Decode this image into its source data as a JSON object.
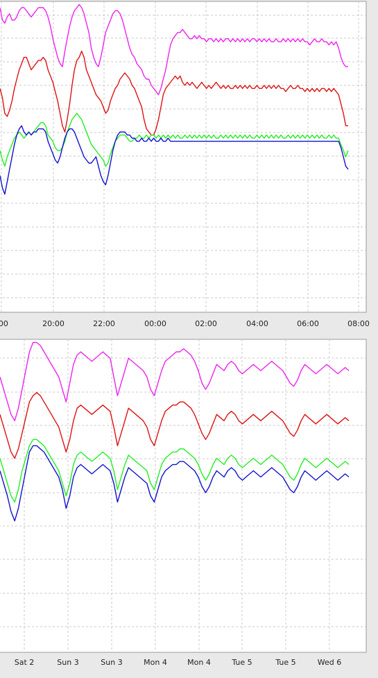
{
  "colors": {
    "background": "#e9e9e9",
    "plot_area": "#ffffff",
    "grid": "#c8c8c8",
    "magenta": "#ee22ee",
    "red": "#dd1111",
    "green": "#22ee22",
    "blue": "#1111cc"
  },
  "chart_data": [
    {
      "type": "line",
      "x_tick_labels": [
        ":00",
        "20:00",
        "22:00",
        "00:00",
        "02:00",
        "04:00",
        "06:00",
        "08:00"
      ],
      "grid": true,
      "series": [
        {
          "color": "magenta",
          "values": [
            98,
            94,
            93,
            95,
            96,
            94,
            94,
            95,
            97,
            98,
            98,
            97,
            96,
            95,
            96,
            97,
            98,
            98,
            98,
            97,
            95,
            92,
            88,
            85,
            82,
            80,
            79,
            84,
            88,
            92,
            95,
            97,
            98,
            99,
            98,
            96,
            93,
            90,
            85,
            82,
            80,
            79,
            82,
            86,
            90,
            92,
            94,
            96,
            97,
            97,
            96,
            94,
            91,
            88,
            85,
            83,
            82,
            80,
            79,
            78,
            76,
            75,
            75,
            73,
            72,
            71,
            70,
            72,
            75,
            78,
            82,
            86,
            88,
            89,
            90,
            90,
            91,
            90,
            89,
            88,
            88,
            89,
            88,
            89,
            88,
            88,
            87,
            88,
            88,
            87,
            88,
            87,
            88,
            87,
            88,
            88,
            87,
            88,
            87,
            88,
            87,
            88,
            87,
            88,
            87,
            88,
            88,
            87,
            88,
            87,
            88,
            87,
            88,
            87,
            87,
            88,
            87,
            87,
            88,
            87,
            88,
            87,
            88,
            87,
            88,
            87,
            88,
            87,
            87,
            86,
            87,
            88,
            87,
            87,
            88,
            87,
            87,
            86,
            87,
            86,
            87,
            85,
            82,
            80,
            79,
            79
          ]
        },
        {
          "color": "red",
          "values": [
            72,
            69,
            64,
            63,
            65,
            68,
            72,
            75,
            78,
            80,
            82,
            82,
            80,
            78,
            79,
            80,
            81,
            81,
            82,
            81,
            78,
            76,
            74,
            71,
            68,
            64,
            60,
            58,
            62,
            67,
            73,
            78,
            81,
            82,
            84,
            82,
            78,
            76,
            74,
            72,
            70,
            69,
            68,
            66,
            64,
            65,
            68,
            70,
            72,
            73,
            75,
            76,
            77,
            76,
            75,
            73,
            72,
            70,
            68,
            66,
            62,
            59,
            58,
            57,
            57,
            59,
            62,
            66,
            70,
            72,
            73,
            74,
            75,
            76,
            75,
            76,
            74,
            73,
            74,
            73,
            74,
            73,
            72,
            73,
            74,
            73,
            72,
            73,
            72,
            73,
            74,
            73,
            72,
            73,
            72,
            73,
            72,
            72,
            73,
            72,
            73,
            72,
            73,
            72,
            73,
            72,
            72,
            73,
            72,
            72,
            73,
            72,
            73,
            72,
            73,
            72,
            73,
            72,
            72,
            71,
            72,
            73,
            72,
            72,
            73,
            72,
            72,
            71,
            72,
            71,
            72,
            71,
            72,
            71,
            72,
            72,
            71,
            72,
            71,
            72,
            71,
            70,
            67,
            64,
            60,
            60
          ]
        },
        {
          "color": "green",
          "values": [
            52,
            49,
            47,
            50,
            52,
            54,
            56,
            57,
            58,
            57,
            56,
            57,
            58,
            57,
            58,
            59,
            60,
            61,
            61,
            60,
            57,
            56,
            55,
            53,
            52,
            52,
            53,
            55,
            58,
            60,
            62,
            63,
            64,
            63,
            62,
            60,
            58,
            56,
            54,
            53,
            52,
            51,
            50,
            49,
            47,
            48,
            51,
            53,
            55,
            56,
            57,
            57,
            57,
            56,
            55,
            55,
            56,
            56,
            57,
            56,
            56,
            57,
            56,
            57,
            57,
            56,
            57,
            56,
            57,
            56,
            57,
            56,
            57,
            56,
            57,
            56,
            56,
            57,
            56,
            57,
            56,
            57,
            56,
            57,
            56,
            57,
            56,
            57,
            56,
            57,
            56,
            56,
            57,
            56,
            57,
            56,
            57,
            56,
            57,
            56,
            57,
            56,
            57,
            56,
            57,
            56,
            56,
            57,
            56,
            57,
            56,
            57,
            56,
            57,
            56,
            57,
            56,
            57,
            56,
            56,
            57,
            56,
            57,
            56,
            57,
            56,
            57,
            56,
            57,
            56,
            57,
            56,
            57,
            56,
            57,
            56,
            56,
            57,
            56,
            57,
            56,
            56,
            54,
            52,
            50,
            52
          ]
        },
        {
          "color": "blue",
          "values": [
            44,
            40,
            38,
            42,
            46,
            50,
            54,
            57,
            59,
            60,
            58,
            57,
            58,
            57,
            58,
            58,
            59,
            59,
            59,
            58,
            55,
            53,
            51,
            49,
            48,
            50,
            53,
            56,
            58,
            59,
            59,
            58,
            56,
            54,
            52,
            50,
            49,
            48,
            48,
            49,
            50,
            47,
            44,
            42,
            41,
            44,
            48,
            52,
            55,
            57,
            58,
            58,
            58,
            57,
            57,
            56,
            56,
            55,
            55,
            56,
            55,
            55,
            56,
            55,
            56,
            55,
            55,
            56,
            55,
            55,
            56,
            55,
            55,
            55,
            55,
            55,
            55,
            55,
            55,
            55,
            55,
            55,
            55,
            55,
            55,
            55,
            55,
            55,
            55,
            55,
            55,
            55,
            55,
            55,
            55,
            55,
            55,
            55,
            55,
            55,
            55,
            55,
            55,
            55,
            55,
            55,
            55,
            55,
            55,
            55,
            55,
            55,
            55,
            55,
            55,
            55,
            55,
            55,
            55,
            55,
            55,
            55,
            55,
            55,
            55,
            55,
            55,
            55,
            55,
            55,
            55,
            55,
            55,
            55,
            55,
            55,
            55,
            55,
            55,
            55,
            55,
            55,
            53,
            50,
            47,
            46
          ]
        }
      ]
    },
    {
      "type": "line",
      "x_tick_labels": [
        "Sat 2",
        "Sun 3",
        "Sun 3",
        "Mon 4",
        "Mon 4",
        "Tue 5",
        "Tue 5",
        "Wed 6"
      ],
      "grid": true,
      "series": [
        {
          "color": "magenta",
          "values": [
            88,
            84,
            80,
            76,
            74,
            78,
            84,
            90,
            96,
            99,
            99,
            98,
            96,
            94,
            92,
            90,
            88,
            84,
            80,
            86,
            92,
            95,
            96,
            95,
            94,
            93,
            94,
            95,
            96,
            95,
            94,
            88,
            82,
            86,
            90,
            94,
            93,
            92,
            91,
            90,
            88,
            84,
            82,
            86,
            90,
            93,
            94,
            95,
            96,
            96,
            97,
            96,
            95,
            93,
            90,
            86,
            84,
            86,
            89,
            92,
            91,
            90,
            92,
            93,
            92,
            90,
            89,
            90,
            91,
            92,
            91,
            90,
            91,
            92,
            93,
            92,
            91,
            90,
            88,
            86,
            85,
            87,
            90,
            92,
            91,
            90,
            89,
            90,
            91,
            92,
            91,
            90,
            89,
            90,
            91,
            90
          ]
        },
        {
          "color": "red",
          "values": [
            76,
            72,
            68,
            64,
            62,
            65,
            70,
            75,
            80,
            82,
            83,
            82,
            80,
            78,
            76,
            74,
            72,
            68,
            64,
            68,
            74,
            78,
            79,
            78,
            77,
            76,
            77,
            78,
            79,
            78,
            77,
            72,
            66,
            70,
            74,
            78,
            77,
            76,
            75,
            74,
            72,
            68,
            66,
            70,
            74,
            77,
            78,
            79,
            79,
            80,
            80,
            79,
            78,
            76,
            73,
            70,
            68,
            70,
            73,
            76,
            75,
            74,
            76,
            77,
            76,
            74,
            73,
            74,
            75,
            76,
            75,
            74,
            75,
            76,
            77,
            76,
            75,
            74,
            72,
            70,
            69,
            71,
            74,
            76,
            75,
            74,
            73,
            74,
            75,
            76,
            75,
            74,
            73,
            74,
            75,
            74
          ]
        },
        {
          "color": "green",
          "values": [
            62,
            58,
            54,
            50,
            48,
            52,
            58,
            62,
            66,
            68,
            68,
            67,
            66,
            64,
            62,
            60,
            58,
            54,
            50,
            54,
            60,
            63,
            64,
            63,
            62,
            61,
            62,
            63,
            64,
            63,
            62,
            58,
            52,
            56,
            60,
            63,
            62,
            61,
            60,
            59,
            58,
            54,
            52,
            56,
            60,
            62,
            63,
            64,
            64,
            65,
            65,
            64,
            63,
            62,
            60,
            57,
            55,
            57,
            60,
            62,
            61,
            60,
            62,
            63,
            62,
            60,
            59,
            60,
            61,
            62,
            61,
            60,
            61,
            62,
            63,
            62,
            61,
            60,
            58,
            56,
            55,
            57,
            60,
            62,
            61,
            60,
            59,
            60,
            61,
            62,
            61,
            60,
            59,
            60,
            61,
            60
          ]
        },
        {
          "color": "blue",
          "values": [
            58,
            54,
            50,
            45,
            42,
            46,
            52,
            58,
            64,
            66,
            66,
            65,
            64,
            62,
            60,
            58,
            56,
            52,
            46,
            50,
            56,
            59,
            60,
            59,
            58,
            57,
            58,
            59,
            60,
            59,
            58,
            54,
            48,
            52,
            56,
            59,
            58,
            57,
            56,
            55,
            54,
            50,
            48,
            52,
            56,
            58,
            59,
            60,
            60,
            61,
            61,
            60,
            59,
            58,
            56,
            53,
            51,
            53,
            56,
            58,
            57,
            56,
            58,
            59,
            58,
            56,
            55,
            56,
            57,
            58,
            57,
            56,
            57,
            58,
            59,
            58,
            57,
            56,
            54,
            52,
            51,
            53,
            56,
            58,
            57,
            56,
            55,
            56,
            57,
            58,
            57,
            56,
            55,
            56,
            57,
            56
          ]
        }
      ]
    }
  ]
}
